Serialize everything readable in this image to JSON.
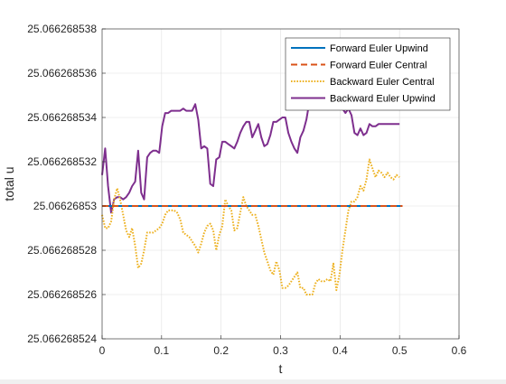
{
  "chart_data": {
    "type": "line",
    "title": "",
    "xlabel": "t",
    "ylabel": "total u",
    "xlim": [
      0,
      0.6
    ],
    "ylim": [
      25.066268524,
      25.066268538
    ],
    "xticks": [
      0,
      0.1,
      0.2,
      0.3,
      0.4,
      0.5,
      0.6
    ],
    "xtick_labels": [
      "0",
      "0.1",
      "0.2",
      "0.3",
      "0.4",
      "0.5",
      "0.6"
    ],
    "yticks": [
      25.066268524,
      25.066268526,
      25.066268528,
      25.06626853,
      25.066268532,
      25.066268534,
      25.066268536,
      25.066268538
    ],
    "ytick_labels": [
      "25.066268524",
      "25.066268526",
      "25.066268528",
      "25.06626853",
      "25.066268532",
      "25.066268534",
      "25.066268536",
      "25.066268538"
    ],
    "grid": true,
    "legend": "top-right",
    "series": [
      {
        "name": "Forward Euler Upwind",
        "color": "#0072BD",
        "dash": "solid",
        "x": [
          0,
          0.505
        ],
        "y": [
          25.06626853,
          25.06626853
        ]
      },
      {
        "name": "Forward Euler Central",
        "color": "#D95319",
        "dash": "dashed",
        "x": [
          0,
          0.505
        ],
        "y": [
          25.06626853,
          25.06626853
        ]
      },
      {
        "name": "Backward Euler Central",
        "color": "#EDB120",
        "dash": "dotted",
        "x": [
          0,
          0.0051,
          0.0101,
          0.0152,
          0.0202,
          0.0253,
          0.0303,
          0.0354,
          0.0404,
          0.0455,
          0.0505,
          0.0556,
          0.0606,
          0.0657,
          0.0707,
          0.0758,
          0.0808,
          0.0859,
          0.0909,
          0.096,
          0.101,
          0.1061,
          0.1111,
          0.1162,
          0.1212,
          0.1263,
          0.1313,
          0.1364,
          0.1414,
          0.1465,
          0.1515,
          0.1566,
          0.1616,
          0.1667,
          0.1717,
          0.1768,
          0.1818,
          0.1869,
          0.1919,
          0.197,
          0.202,
          0.2071,
          0.2121,
          0.2172,
          0.2222,
          0.2273,
          0.2323,
          0.2374,
          0.2424,
          0.2475,
          0.2525,
          0.2576,
          0.2626,
          0.2677,
          0.2727,
          0.2778,
          0.2828,
          0.2879,
          0.2929,
          0.298,
          0.303,
          0.3081,
          0.3131,
          0.3182,
          0.3232,
          0.3283,
          0.3333,
          0.3384,
          0.3434,
          0.3485,
          0.3535,
          0.3586,
          0.3636,
          0.3687,
          0.3737,
          0.3788,
          0.3838,
          0.3889,
          0.3939,
          0.399,
          0.404,
          0.4091,
          0.4141,
          0.4192,
          0.4242,
          0.4293,
          0.4343,
          0.4394,
          0.4444,
          0.4495,
          0.4545,
          0.4596,
          0.4646,
          0.4697,
          0.4747,
          0.4798,
          0.4848,
          0.4899,
          0.4949,
          0.5
        ],
        "y": [
          25.0662685296,
          25.066268529,
          25.066268529,
          25.0662685293,
          25.0662685303,
          25.0662685308,
          25.0662685303,
          25.0662685296,
          25.0662685289,
          25.0662685286,
          25.066268529,
          25.0662685282,
          25.0662685272,
          25.0662685274,
          25.066268528,
          25.0662685288,
          25.0662685288,
          25.0662685288,
          25.0662685289,
          25.066268529,
          25.0662685292,
          25.0662685296,
          25.0662685298,
          25.0662685298,
          25.0662685298,
          25.0662685297,
          25.0662685294,
          25.0662685288,
          25.0662685287,
          25.0662685286,
          25.0662685284,
          25.0662685282,
          25.0662685279,
          25.0662685283,
          25.0662685288,
          25.0662685291,
          25.0662685292,
          25.0662685289,
          25.066268528,
          25.0662685287,
          25.0662685291,
          25.0662685303,
          25.06626853,
          25.0662685298,
          25.0662685289,
          25.066268529,
          25.0662685297,
          25.0662685304,
          25.06626853,
          25.0662685298,
          25.0662685296,
          25.0662685296,
          25.0662685291,
          25.0662685285,
          25.0662685279,
          25.0662685275,
          25.0662685271,
          25.0662685269,
          25.0662685275,
          25.0662685271,
          25.0662685263,
          25.0662685263,
          25.0662685264,
          25.0662685266,
          25.0662685268,
          25.066268527,
          25.0662685263,
          25.0662685263,
          25.066268526,
          25.066268526,
          25.066268526,
          25.0662685265,
          25.0662685267,
          25.0662685266,
          25.0662685266,
          25.0662685267,
          25.0662685266,
          25.0662685274,
          25.0662685262,
          25.0662685269,
          25.066268528,
          25.0662685289,
          25.0662685298,
          25.0662685302,
          25.0662685302,
          25.0662685304,
          25.0662685309,
          25.0662685307,
          25.0662685312,
          25.0662685321,
          25.0662685317,
          25.0662685313,
          25.0662685316,
          25.0662685315,
          25.0662685313,
          25.0662685315,
          25.0662685313,
          25.0662685312,
          25.0662685314,
          25.0662685313
        ]
      },
      {
        "name": "Backward Euler Upwind",
        "color": "#7E2F8E",
        "dash": "solid",
        "x": [
          0,
          0.0051,
          0.0101,
          0.0152,
          0.0202,
          0.0253,
          0.0303,
          0.0354,
          0.0404,
          0.0455,
          0.0505,
          0.0556,
          0.0606,
          0.0657,
          0.0707,
          0.0758,
          0.0808,
          0.0859,
          0.0909,
          0.096,
          0.101,
          0.1061,
          0.1111,
          0.1162,
          0.1212,
          0.1263,
          0.1313,
          0.1364,
          0.1414,
          0.1465,
          0.1515,
          0.1566,
          0.1616,
          0.1667,
          0.1717,
          0.1768,
          0.1818,
          0.1869,
          0.1919,
          0.197,
          0.202,
          0.2071,
          0.2121,
          0.2172,
          0.2222,
          0.2273,
          0.2323,
          0.2374,
          0.2424,
          0.2475,
          0.2525,
          0.2576,
          0.2626,
          0.2677,
          0.2727,
          0.2778,
          0.2828,
          0.2879,
          0.2929,
          0.298,
          0.303,
          0.3081,
          0.3131,
          0.3182,
          0.3232,
          0.3283,
          0.3333,
          0.3384,
          0.3434,
          0.3485,
          0.3535,
          0.3586,
          0.3636,
          0.3687,
          0.3737,
          0.3788,
          0.3838,
          0.3889,
          0.3939,
          0.399,
          0.404,
          0.4091,
          0.4141,
          0.4192,
          0.4242,
          0.4293,
          0.4343,
          0.4394,
          0.4444,
          0.4495,
          0.4545,
          0.4596,
          0.4646,
          0.4697,
          0.4747,
          0.4798,
          0.4848,
          0.4899,
          0.4949,
          0.5
        ],
        "y": [
          25.0662685314,
          25.0662685326,
          25.0662685309,
          25.0662685297,
          25.0662685303,
          25.0662685304,
          25.0662685304,
          25.0662685303,
          25.0662685304,
          25.0662685306,
          25.0662685309,
          25.0662685311,
          25.0662685325,
          25.0662685306,
          25.0662685303,
          25.0662685322,
          25.0662685324,
          25.0662685325,
          25.0662685325,
          25.0662685324,
          25.0662685336,
          25.0662685342,
          25.0662685342,
          25.0662685343,
          25.0662685343,
          25.0662685343,
          25.0662685343,
          25.0662685344,
          25.0662685343,
          25.0662685343,
          25.0662685343,
          25.0662685346,
          25.0662685339,
          25.0662685326,
          25.0662685327,
          25.0662685326,
          25.066268531,
          25.0662685309,
          25.0662685321,
          25.0662685322,
          25.0662685329,
          25.0662685329,
          25.0662685328,
          25.0662685327,
          25.0662685326,
          25.0662685329,
          25.0662685333,
          25.0662685336,
          25.0662685338,
          25.0662685338,
          25.0662685331,
          25.0662685334,
          25.0662685337,
          25.0662685331,
          25.0662685327,
          25.0662685328,
          25.0662685332,
          25.0662685338,
          25.0662685338,
          25.0662685339,
          25.066268534,
          25.066268534,
          25.0662685333,
          25.0662685329,
          25.0662685326,
          25.0662685324,
          25.0662685331,
          25.0662685334,
          25.0662685339,
          25.0662685347,
          25.066268535,
          25.0662685352,
          25.0662685352,
          25.0662685351,
          25.066268535,
          25.066268535,
          25.0662685351,
          25.0662685352,
          25.0662685352,
          25.0662685347,
          25.0662685344,
          25.0662685342,
          25.0662685344,
          25.0662685341,
          25.0662685333,
          25.0662685332,
          25.0662685335,
          25.0662685332,
          25.0662685333,
          25.0662685337,
          25.0662685336,
          25.0662685336,
          25.0662685337,
          25.0662685337,
          25.0662685337,
          25.0662685337,
          25.0662685337,
          25.0662685337,
          25.0662685337,
          25.0662685337
        ]
      }
    ]
  }
}
